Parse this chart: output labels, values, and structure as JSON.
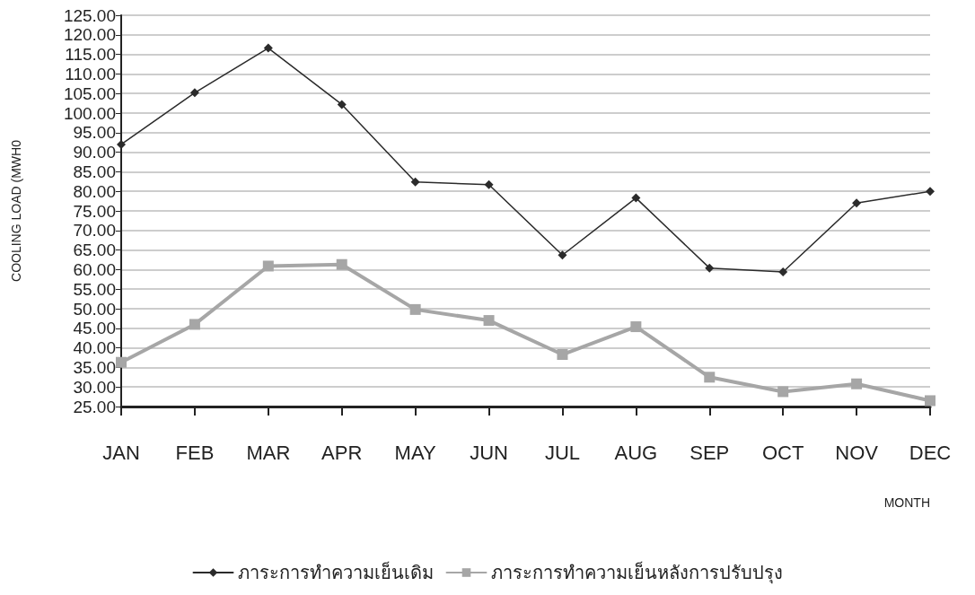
{
  "chart_data": {
    "type": "line",
    "ylabel": "COOLING LOAD (MWH0",
    "xlabel": "MONTH",
    "categories": [
      "JAN",
      "FEB",
      "MAR",
      "APR",
      "MAY",
      "JUN",
      "JUL",
      "AUG",
      "SEP",
      "OCT",
      "NOV",
      "DEC"
    ],
    "series": [
      {
        "name": "ภาระการทำความเย็นเดิม",
        "color": "#2b2b2b",
        "marker": "diamond",
        "values": [
          92.0,
          105.2,
          116.6,
          102.2,
          82.4,
          81.7,
          63.7,
          78.3,
          60.4,
          59.4,
          77.0,
          80.0
        ]
      },
      {
        "name": "ภาระการทำความเย็นหลังการปรับปรุง",
        "color": "#a6a6a6",
        "marker": "square",
        "values": [
          36.3,
          46.0,
          60.9,
          61.3,
          49.8,
          47.0,
          38.3,
          45.4,
          32.5,
          28.8,
          30.8,
          26.5
        ]
      }
    ],
    "ylim": [
      25,
      125
    ],
    "yticks": [
      {
        "value": 25,
        "label": "25.00"
      },
      {
        "value": 30,
        "label": "30.00"
      },
      {
        "value": 35,
        "label": "35.00"
      },
      {
        "value": 40,
        "label": "40.00"
      },
      {
        "value": 45,
        "label": "45.00"
      },
      {
        "value": 50,
        "label": "50.00"
      },
      {
        "value": 55,
        "label": "55.00"
      },
      {
        "value": 60,
        "label": "60.00"
      },
      {
        "value": 65,
        "label": "65.00"
      },
      {
        "value": 70,
        "label": "70.00"
      },
      {
        "value": 75,
        "label": "75.00"
      },
      {
        "value": 80,
        "label": "80.00"
      },
      {
        "value": 85,
        "label": "85.00"
      },
      {
        "value": 90,
        "label": "90.00"
      },
      {
        "value": 95,
        "label": "95.00"
      },
      {
        "value": 100,
        "label": "100.00"
      },
      {
        "value": 105,
        "label": "105.00"
      },
      {
        "value": 110,
        "label": "110.00"
      },
      {
        "value": 115,
        "label": "115.00"
      },
      {
        "value": 120,
        "label": "120.00"
      },
      {
        "value": 125,
        "label": "125.00"
      }
    ],
    "grid": "y",
    "legend": "bottom",
    "line_style": "solid"
  }
}
